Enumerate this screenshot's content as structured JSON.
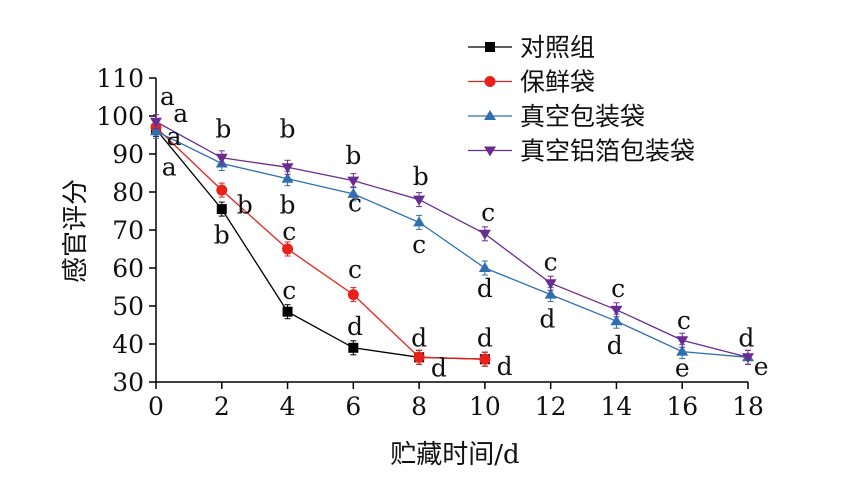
{
  "chart_data": {
    "type": "line",
    "xlabel": "贮藏时间/d",
    "ylabel": "感官评分",
    "xlim": [
      0,
      18
    ],
    "ylim": [
      30,
      110
    ],
    "xticks": [
      0,
      2,
      4,
      6,
      8,
      10,
      12,
      14,
      16,
      18
    ],
    "yticks": [
      30,
      40,
      50,
      60,
      70,
      80,
      90,
      100,
      110
    ],
    "grid": false,
    "legend_position": "top-right",
    "series": [
      {
        "name": "对照组",
        "color": "#000000",
        "marker": "square",
        "x": [
          0,
          2,
          4,
          6,
          8,
          10
        ],
        "y": [
          96.5,
          75.5,
          48.5,
          39,
          36.5,
          36
        ]
      },
      {
        "name": "保鲜袋",
        "color": "#e8221b",
        "marker": "circle",
        "x": [
          0,
          2,
          4,
          6,
          8,
          10
        ],
        "y": [
          97,
          80.5,
          65,
          53,
          36.5,
          36
        ]
      },
      {
        "name": "真空包装袋",
        "color": "#2f6fb0",
        "marker": "triangle-up",
        "x": [
          0,
          2,
          4,
          6,
          8,
          10,
          12,
          14,
          16,
          18
        ],
        "y": [
          96,
          87.5,
          83.5,
          79.5,
          72,
          60,
          53,
          46,
          38,
          36.5
        ]
      },
      {
        "name": "真空铝箔包装袋",
        "color": "#6a2c91",
        "marker": "triangle-down",
        "x": [
          0,
          2,
          4,
          6,
          8,
          10,
          12,
          14,
          16,
          18
        ],
        "y": [
          98.5,
          89,
          86.5,
          83,
          78,
          69,
          56,
          49,
          41,
          36.5
        ]
      }
    ],
    "annotations": [
      {
        "text": "a",
        "x": 0.35,
        "y": 105
      },
      {
        "text": "a",
        "x": 0.75,
        "y": 100.5
      },
      {
        "text": "a",
        "x": 0.55,
        "y": 94.5
      },
      {
        "text": "a",
        "x": 0.4,
        "y": 86.5
      },
      {
        "text": "b",
        "x": 2.05,
        "y": 96.5
      },
      {
        "text": "b",
        "x": 2.7,
        "y": 76.5
      },
      {
        "text": "b",
        "x": 2.0,
        "y": 68.5
      },
      {
        "text": "b",
        "x": 4.0,
        "y": 96.5
      },
      {
        "text": "b",
        "x": 4.0,
        "y": 76.5
      },
      {
        "text": "b",
        "x": 6.0,
        "y": 89.5
      },
      {
        "text": "b",
        "x": 8.05,
        "y": 84
      },
      {
        "text": "c",
        "x": 4.05,
        "y": 69.5
      },
      {
        "text": "c",
        "x": 4.05,
        "y": 54
      },
      {
        "text": "c",
        "x": 6.05,
        "y": 59.5
      },
      {
        "text": "c",
        "x": 6.05,
        "y": 77
      },
      {
        "text": "c",
        "x": 8.0,
        "y": 66
      },
      {
        "text": "c",
        "x": 10.1,
        "y": 74.5
      },
      {
        "text": "c",
        "x": 12.0,
        "y": 61.5
      },
      {
        "text": "c",
        "x": 14.05,
        "y": 54.5
      },
      {
        "text": "c",
        "x": 16.05,
        "y": 46
      },
      {
        "text": "d",
        "x": 6.05,
        "y": 44.5
      },
      {
        "text": "d",
        "x": 8.0,
        "y": 41.5
      },
      {
        "text": "d",
        "x": 8.6,
        "y": 33.5
      },
      {
        "text": "d",
        "x": 10.0,
        "y": 41.5
      },
      {
        "text": "d",
        "x": 10.6,
        "y": 34
      },
      {
        "text": "d",
        "x": 10.0,
        "y": 54.5
      },
      {
        "text": "d",
        "x": 11.9,
        "y": 46.5
      },
      {
        "text": "d",
        "x": 13.95,
        "y": 39.5
      },
      {
        "text": "d",
        "x": 17.95,
        "y": 41.5
      },
      {
        "text": "e",
        "x": 16.0,
        "y": 33.5
      },
      {
        "text": "e",
        "x": 18.4,
        "y": 34
      }
    ]
  }
}
